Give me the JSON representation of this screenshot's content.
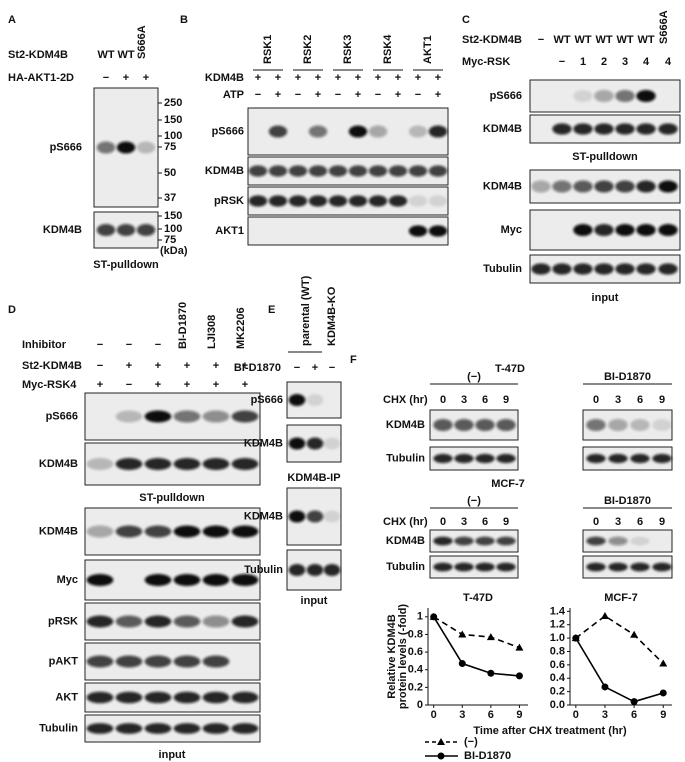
{
  "panels": {
    "A": {
      "letter": "A",
      "rows": [
        {
          "label": "St2-KDM4B",
          "cells": [
            "WT",
            "WT",
            "S666A"
          ]
        },
        {
          "label": "HA-AKT1-2D",
          "cells": [
            "−",
            "+",
            "+"
          ]
        }
      ],
      "blots": [
        "pS666",
        "KDM4B"
      ],
      "captions": [
        "ST-pulldown"
      ],
      "markers": [
        250,
        150,
        100,
        75,
        50,
        37,
        150,
        100,
        75
      ],
      "marker_unit": "(kDa)"
    },
    "B": {
      "letter": "B",
      "groups": [
        "RSK1",
        "RSK2",
        "RSK3",
        "RSK4",
        "AKT1"
      ],
      "rows": [
        {
          "label": "KDM4B",
          "cells": [
            "+",
            "+",
            "+",
            "+",
            "+",
            "+",
            "+",
            "+",
            "+",
            "+"
          ]
        },
        {
          "label": "ATP",
          "cells": [
            "−",
            "+",
            "−",
            "+",
            "−",
            "+",
            "−",
            "+",
            "−",
            "+"
          ]
        }
      ],
      "blots": [
        "pS666",
        "KDM4B",
        "pRSK",
        "AKT1"
      ]
    },
    "C": {
      "letter": "C",
      "rows": [
        {
          "label": "St2-KDM4B",
          "cells": [
            "−",
            "WT",
            "WT",
            "WT",
            "WT",
            "WT",
            "S666A"
          ]
        },
        {
          "label": "Myc-RSK",
          "cells": [
            null,
            "−",
            "1",
            "2",
            "3",
            "4",
            "4"
          ]
        }
      ],
      "blots": [
        "pS666",
        "KDM4B",
        "KDM4B",
        "Myc",
        "Tubulin"
      ],
      "captions": [
        "ST-pulldown",
        "input"
      ]
    },
    "D": {
      "letter": "D",
      "rows": [
        {
          "label": "Inhibitor",
          "cells": [
            "−",
            "−",
            "−",
            "BI-D1870",
            "LJI308",
            "MK2206"
          ]
        },
        {
          "label": "St2-KDM4B",
          "cells": [
            "−",
            "+",
            "+",
            "+",
            "+",
            "+"
          ]
        },
        {
          "label": "Myc-RSK4",
          "cells": [
            "+",
            "−",
            "+",
            "+",
            "+",
            "+"
          ]
        }
      ],
      "blots": [
        "pS666",
        "KDM4B",
        "KDM4B",
        "Myc",
        "pRSK",
        "pAKT",
        "AKT",
        "Tubulin"
      ],
      "captions": [
        "ST-pulldown",
        "input"
      ]
    },
    "E": {
      "letter": "E",
      "headers": [
        "parental (WT)",
        "KDM4B-KO"
      ],
      "rows": [
        {
          "label": "BI-D1870",
          "cells": [
            "−",
            "+",
            "−"
          ]
        }
      ],
      "blots": [
        "pS666",
        "KDM4B",
        "KDM4B",
        "Tubulin"
      ],
      "captions": [
        "KDM4B-IP",
        "input"
      ]
    },
    "F": {
      "letter": "F",
      "cell_lines": [
        {
          "name": "T-47D",
          "groups": [
            "(−)",
            "BI-D1870"
          ],
          "row_label": "CHX (hr)",
          "times": [
            0,
            3,
            6,
            9,
            0,
            3,
            6,
            9
          ],
          "blots": [
            "KDM4B",
            "Tubulin"
          ]
        },
        {
          "name": "MCF-7",
          "groups": [
            "(−)",
            "BI-D1870"
          ],
          "row_label": "CHX (hr)",
          "times": [
            0,
            3,
            6,
            9,
            0,
            3,
            6,
            9
          ],
          "blots": [
            "KDM4B",
            "Tubulin"
          ]
        }
      ]
    }
  },
  "chart_data": [
    {
      "type": "line",
      "title": "T-47D",
      "x": [
        0,
        3,
        6,
        9
      ],
      "xlim": [
        -0.6,
        9.9
      ],
      "xticks": [
        0,
        3,
        6,
        9
      ],
      "ylim": [
        0,
        1.1
      ],
      "yticks": [
        0,
        0.2,
        0.4,
        0.6,
        0.8,
        1
      ],
      "y_label": [
        "Relative KDM4B",
        "protein levels (-fold)"
      ],
      "x_label": "Time after CHX treatment (hr)",
      "series": [
        {
          "name": "(−)",
          "color": "#000000",
          "line_style": "dashed",
          "marker": "triangle",
          "values": [
            1,
            0.8,
            0.77,
            0.65
          ]
        },
        {
          "name": "BI-D1870",
          "color": "#000000",
          "line_style": "solid",
          "marker": "circle",
          "values": [
            1,
            0.47,
            0.36,
            0.33
          ]
        }
      ]
    },
    {
      "type": "line",
      "title": "MCF-7",
      "x": [
        0,
        3,
        6,
        9
      ],
      "xlim": [
        -0.6,
        9.9
      ],
      "xticks": [
        0,
        3,
        6,
        9
      ],
      "ylim": [
        0,
        1.45
      ],
      "yticks": [
        {
          "value": 0,
          "label": "0.0"
        },
        0.2,
        0.4,
        0.6,
        0.8,
        {
          "value": 1,
          "label": "1.0"
        },
        1.2,
        1.4
      ],
      "series": [
        {
          "color": "#000000",
          "line_style": "dashed",
          "marker": "triangle",
          "values": [
            1,
            1.33,
            1.05,
            0.62
          ]
        },
        {
          "color": "#000000",
          "line_style": "solid",
          "marker": "circle",
          "values": [
            1,
            0.27,
            0.05,
            0.18
          ]
        }
      ]
    }
  ]
}
